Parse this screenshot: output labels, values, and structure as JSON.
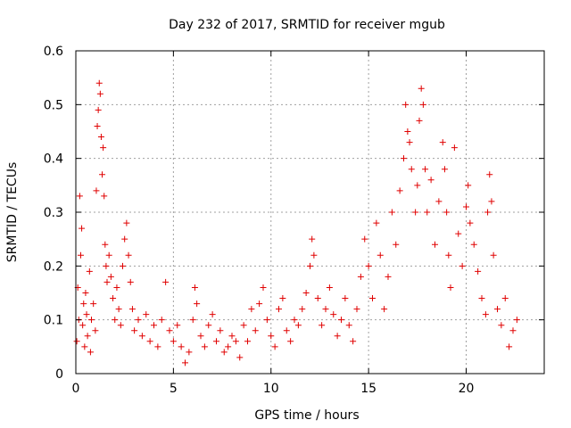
{
  "chart_data": {
    "type": "scatter",
    "title": "Day 232 of 2017, SRMTID for receiver mgub",
    "xlabel": "GPS time / hours",
    "ylabel": "SRMTID / TECUs",
    "xlim": [
      0,
      24
    ],
    "ylim": [
      0,
      0.6
    ],
    "xticks": [
      0,
      5,
      10,
      15,
      20
    ],
    "xtick_labels": [
      "0",
      "5",
      "10",
      "15",
      "20"
    ],
    "yticks": [
      0,
      0.1,
      0.2,
      0.3,
      0.4,
      0.5,
      0.6
    ],
    "ytick_labels": [
      "0",
      "0.1",
      "0.2",
      "0.3",
      "0.4",
      "0.5",
      "0.6"
    ],
    "grid": true,
    "legend": "none",
    "marker": "+",
    "color": "#e00000",
    "series": [
      {
        "name": "SRMTID",
        "points": [
          [
            0.05,
            0.06
          ],
          [
            0.1,
            0.16
          ],
          [
            0.15,
            0.1
          ],
          [
            0.2,
            0.33
          ],
          [
            0.25,
            0.22
          ],
          [
            0.3,
            0.27
          ],
          [
            0.35,
            0.09
          ],
          [
            0.4,
            0.13
          ],
          [
            0.45,
            0.05
          ],
          [
            0.5,
            0.15
          ],
          [
            0.55,
            0.11
          ],
          [
            0.6,
            0.07
          ],
          [
            0.7,
            0.19
          ],
          [
            0.75,
            0.04
          ],
          [
            0.8,
            0.1
          ],
          [
            0.9,
            0.13
          ],
          [
            1.0,
            0.08
          ],
          [
            1.05,
            0.34
          ],
          [
            1.1,
            0.46
          ],
          [
            1.15,
            0.49
          ],
          [
            1.2,
            0.54
          ],
          [
            1.25,
            0.52
          ],
          [
            1.3,
            0.44
          ],
          [
            1.35,
            0.37
          ],
          [
            1.4,
            0.42
          ],
          [
            1.45,
            0.33
          ],
          [
            1.5,
            0.24
          ],
          [
            1.55,
            0.2
          ],
          [
            1.6,
            0.17
          ],
          [
            1.7,
            0.22
          ],
          [
            1.8,
            0.18
          ],
          [
            1.9,
            0.14
          ],
          [
            2.0,
            0.1
          ],
          [
            2.1,
            0.16
          ],
          [
            2.2,
            0.12
          ],
          [
            2.3,
            0.09
          ],
          [
            2.4,
            0.2
          ],
          [
            2.5,
            0.25
          ],
          [
            2.6,
            0.28
          ],
          [
            2.7,
            0.22
          ],
          [
            2.8,
            0.17
          ],
          [
            2.9,
            0.12
          ],
          [
            3.0,
            0.08
          ],
          [
            3.2,
            0.1
          ],
          [
            3.4,
            0.07
          ],
          [
            3.6,
            0.11
          ],
          [
            3.8,
            0.06
          ],
          [
            4.0,
            0.09
          ],
          [
            4.2,
            0.05
          ],
          [
            4.4,
            0.1
          ],
          [
            4.6,
            0.17
          ],
          [
            4.8,
            0.08
          ],
          [
            5.0,
            0.06
          ],
          [
            5.2,
            0.09
          ],
          [
            5.4,
            0.05
          ],
          [
            5.6,
            0.02
          ],
          [
            5.8,
            0.04
          ],
          [
            6.0,
            0.1
          ],
          [
            6.1,
            0.16
          ],
          [
            6.2,
            0.13
          ],
          [
            6.4,
            0.07
          ],
          [
            6.6,
            0.05
          ],
          [
            6.8,
            0.09
          ],
          [
            7.0,
            0.11
          ],
          [
            7.2,
            0.06
          ],
          [
            7.4,
            0.08
          ],
          [
            7.6,
            0.04
          ],
          [
            7.8,
            0.05
          ],
          [
            8.0,
            0.07
          ],
          [
            8.2,
            0.06
          ],
          [
            8.4,
            0.03
          ],
          [
            8.6,
            0.09
          ],
          [
            8.8,
            0.06
          ],
          [
            9.0,
            0.12
          ],
          [
            9.2,
            0.08
          ],
          [
            9.4,
            0.13
          ],
          [
            9.6,
            0.16
          ],
          [
            9.8,
            0.1
          ],
          [
            10.0,
            0.07
          ],
          [
            10.2,
            0.05
          ],
          [
            10.4,
            0.12
          ],
          [
            10.6,
            0.14
          ],
          [
            10.8,
            0.08
          ],
          [
            11.0,
            0.06
          ],
          [
            11.2,
            0.1
          ],
          [
            11.4,
            0.09
          ],
          [
            11.6,
            0.12
          ],
          [
            11.8,
            0.15
          ],
          [
            12.0,
            0.2
          ],
          [
            12.1,
            0.25
          ],
          [
            12.2,
            0.22
          ],
          [
            12.4,
            0.14
          ],
          [
            12.6,
            0.09
          ],
          [
            12.8,
            0.12
          ],
          [
            13.0,
            0.16
          ],
          [
            13.2,
            0.11
          ],
          [
            13.4,
            0.07
          ],
          [
            13.6,
            0.1
          ],
          [
            13.8,
            0.14
          ],
          [
            14.0,
            0.09
          ],
          [
            14.2,
            0.06
          ],
          [
            14.4,
            0.12
          ],
          [
            14.6,
            0.18
          ],
          [
            14.8,
            0.25
          ],
          [
            15.0,
            0.2
          ],
          [
            15.2,
            0.14
          ],
          [
            15.4,
            0.28
          ],
          [
            15.6,
            0.22
          ],
          [
            15.8,
            0.12
          ],
          [
            16.0,
            0.18
          ],
          [
            16.2,
            0.3
          ],
          [
            16.4,
            0.24
          ],
          [
            16.6,
            0.34
          ],
          [
            16.8,
            0.4
          ],
          [
            16.9,
            0.5
          ],
          [
            17.0,
            0.45
          ],
          [
            17.1,
            0.43
          ],
          [
            17.2,
            0.38
          ],
          [
            17.4,
            0.3
          ],
          [
            17.5,
            0.35
          ],
          [
            17.6,
            0.47
          ],
          [
            17.7,
            0.53
          ],
          [
            17.8,
            0.5
          ],
          [
            17.9,
            0.38
          ],
          [
            18.0,
            0.3
          ],
          [
            18.2,
            0.36
          ],
          [
            18.4,
            0.24
          ],
          [
            18.6,
            0.32
          ],
          [
            18.8,
            0.43
          ],
          [
            18.9,
            0.38
          ],
          [
            19.0,
            0.3
          ],
          [
            19.1,
            0.22
          ],
          [
            19.2,
            0.16
          ],
          [
            19.4,
            0.42
          ],
          [
            19.6,
            0.26
          ],
          [
            19.8,
            0.2
          ],
          [
            20.0,
            0.31
          ],
          [
            20.1,
            0.35
          ],
          [
            20.2,
            0.28
          ],
          [
            20.4,
            0.24
          ],
          [
            20.6,
            0.19
          ],
          [
            20.8,
            0.14
          ],
          [
            21.0,
            0.11
          ],
          [
            21.1,
            0.3
          ],
          [
            21.2,
            0.37
          ],
          [
            21.3,
            0.32
          ],
          [
            21.4,
            0.22
          ],
          [
            21.6,
            0.12
          ],
          [
            21.8,
            0.09
          ],
          [
            22.0,
            0.14
          ],
          [
            22.2,
            0.05
          ],
          [
            22.4,
            0.08
          ],
          [
            22.6,
            0.1
          ]
        ]
      }
    ]
  }
}
